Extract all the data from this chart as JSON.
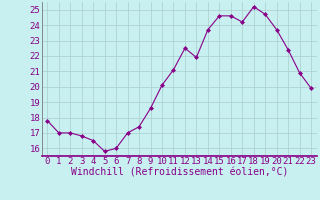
{
  "x": [
    0,
    1,
    2,
    3,
    4,
    5,
    6,
    7,
    8,
    9,
    10,
    11,
    12,
    13,
    14,
    15,
    16,
    17,
    18,
    19,
    20,
    21,
    22,
    23
  ],
  "y": [
    17.8,
    17.0,
    17.0,
    16.8,
    16.5,
    15.8,
    16.0,
    17.0,
    17.4,
    18.6,
    20.1,
    21.1,
    22.5,
    21.9,
    23.7,
    24.6,
    24.6,
    24.2,
    25.2,
    24.7,
    23.7,
    22.4,
    20.9,
    19.9
  ],
  "line_color": "#880088",
  "marker": "D",
  "marker_size": 2,
  "bg_color": "#c8f0f0",
  "grid_color": "#aacccc",
  "xlabel": "Windchill (Refroidissement éolien,°C)",
  "xlabel_color": "#880088",
  "tick_color": "#880088",
  "ylim": [
    15.5,
    25.5
  ],
  "yticks": [
    16,
    17,
    18,
    19,
    20,
    21,
    22,
    23,
    24,
    25
  ],
  "xticks": [
    0,
    1,
    2,
    3,
    4,
    5,
    6,
    7,
    8,
    9,
    10,
    11,
    12,
    13,
    14,
    15,
    16,
    17,
    18,
    19,
    20,
    21,
    22,
    23
  ],
  "font_size": 6.5,
  "xlabel_fontsize": 7
}
